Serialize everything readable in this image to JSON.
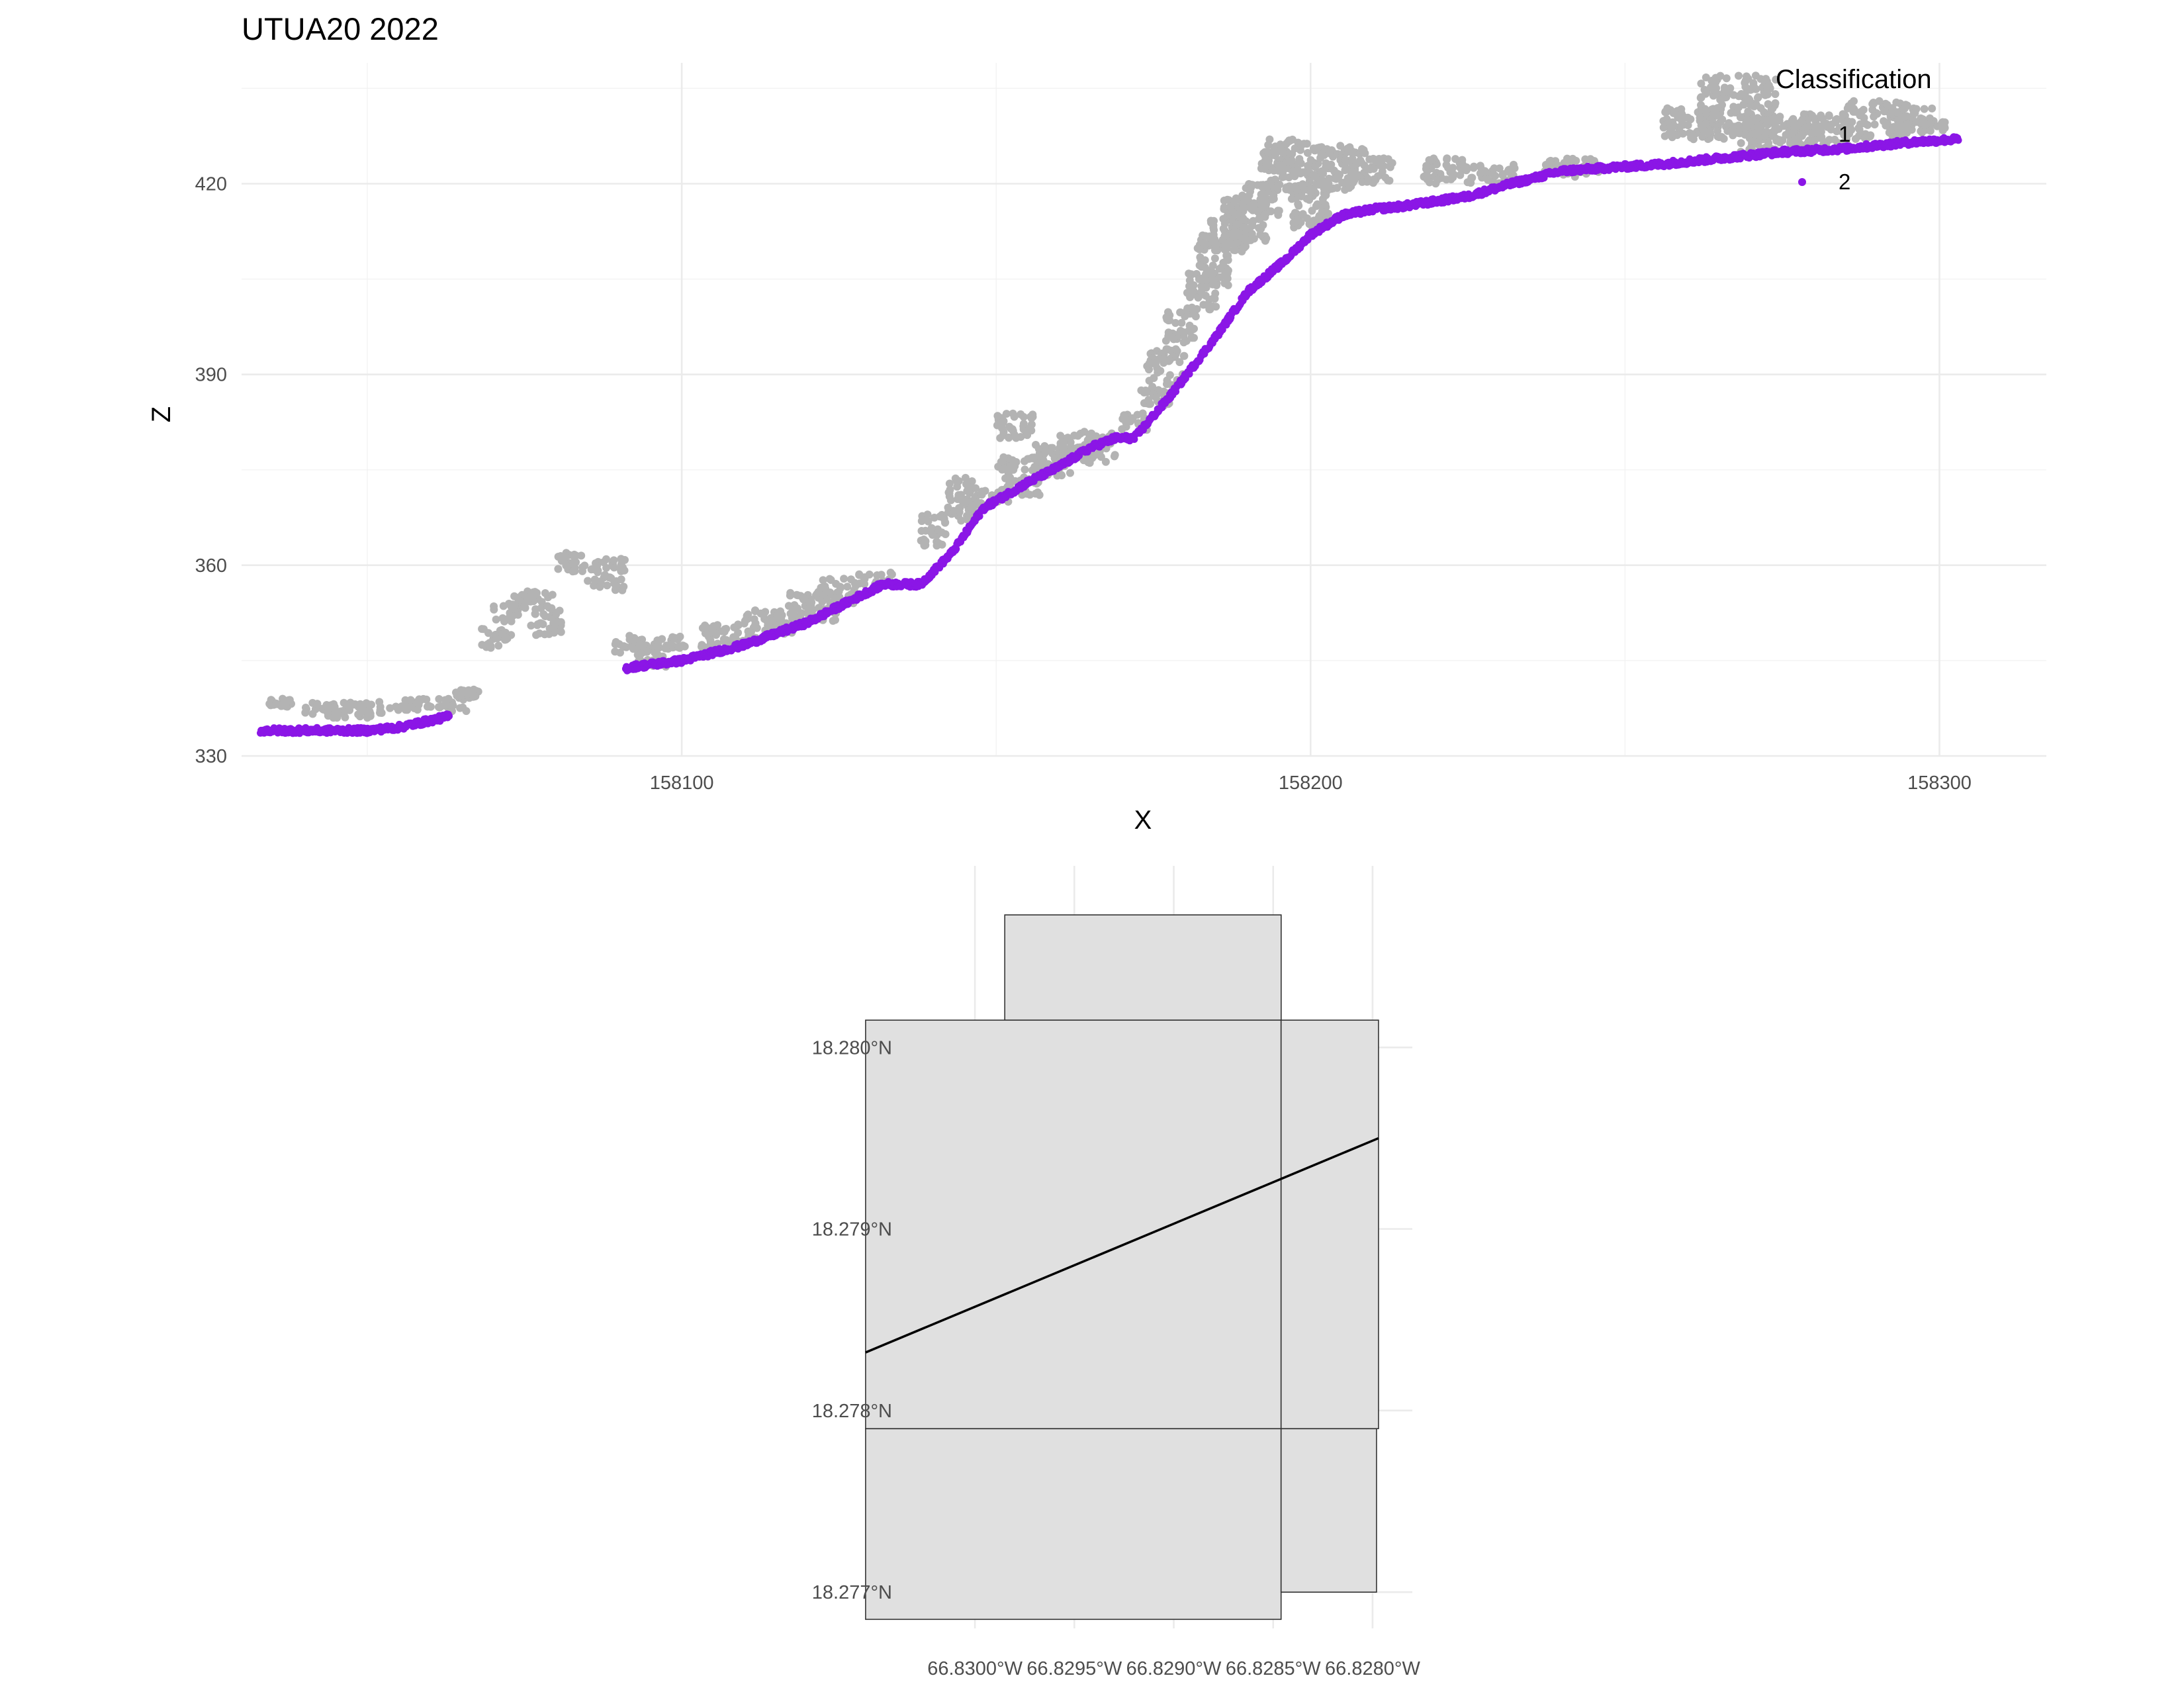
{
  "colors": {
    "class_1": "#b3b3b3",
    "class_2": "#8b16e6",
    "tile_fill": "#e0e0e0",
    "tile_stroke": "#333333",
    "transect": "#000000"
  },
  "chart_data": [
    {
      "type": "scatter",
      "title": "UTUA20 2022",
      "xlabel": "X",
      "ylabel": "Z",
      "xlim": [
        158030,
        158317
      ],
      "ylim": [
        330,
        439
      ],
      "x_ticks": [
        158100,
        158200,
        158300
      ],
      "y_ticks": [
        330,
        360,
        390,
        420
      ],
      "grid": true,
      "legend": {
        "title": "Classification",
        "position": "top-right",
        "entries": [
          "1",
          "2"
        ]
      },
      "series": [
        {
          "name": "1",
          "color": "#b3b3b3",
          "clusters": [
            [
              158034,
              158038,
              337.5,
              339
            ],
            [
              158040,
              158055,
              336,
              338.5
            ],
            [
              158055,
              158066,
              337,
              339
            ],
            [
              158064,
              158068,
              339,
              340.5
            ],
            [
              158068,
              158073,
              347,
              350
            ],
            [
              158070,
              158074,
              351,
              354
            ],
            [
              158073,
              158080,
              353,
              356
            ],
            [
              158076,
              158081,
              349,
              353
            ],
            [
              158080,
              158085,
              359,
              362
            ],
            [
              158085,
              158091,
              356,
              361
            ],
            [
              158089,
              158094,
              346,
              349
            ],
            [
              158093,
              158098,
              344,
              348
            ],
            [
              158096,
              158101,
              347,
              349
            ],
            [
              158103,
              158112,
              347,
              351
            ],
            [
              158110,
              158118,
              349,
              353
            ],
            [
              158117,
              158125,
              351,
              356
            ],
            [
              158122,
              158128,
              354,
              358
            ],
            [
              158128,
              158134,
              357,
              359
            ],
            [
              158138,
              158142,
              363,
              368
            ],
            [
              158142,
              158147,
              367,
              374
            ],
            [
              158146,
              158152,
              369,
              372
            ],
            [
              158150,
              158157,
              371,
              377
            ],
            [
              158150,
              158156,
              380,
              384
            ],
            [
              158156,
              158162,
              374,
              379
            ],
            [
              158160,
              158169,
              376,
              381
            ],
            [
              158170,
              158174,
              381,
              384
            ],
            [
              158173,
              158178,
              385,
              389
            ],
            [
              158174,
              158180,
              389,
              394
            ],
            [
              158177,
              158182,
              395,
              400
            ],
            [
              158180,
              158185,
              400,
              406
            ],
            [
              158182,
              158187,
              404,
              412
            ],
            [
              158184,
              158190,
              409,
              415
            ],
            [
              158186,
              158193,
              411,
              418
            ],
            [
              158189,
              158195,
              415,
              420
            ],
            [
              158192,
              158200,
              419,
              427
            ],
            [
              158197,
              158203,
              413,
              420
            ],
            [
              158200,
              158209,
              419,
              426
            ],
            [
              158206,
              158213,
              420,
              424
            ],
            [
              158218,
              158225,
              420,
              424
            ],
            [
              158225,
              158233,
              420,
              423
            ],
            [
              158237,
              158246,
              421,
              424
            ],
            [
              158256,
              158264,
              427,
              432
            ],
            [
              158262,
              158274,
              427,
              437
            ],
            [
              158268,
              158280,
              425,
              431
            ],
            [
              158276,
              158286,
              426,
              431
            ],
            [
              158285,
              158295,
              427,
              433
            ],
            [
              158292,
              158299,
              428,
              432
            ],
            [
              158297,
              158301,
              428,
              430
            ]
          ]
        },
        {
          "name": "2",
          "color": "#8b16e6",
          "profile": [
            [
              158033,
              334
            ],
            [
              158040,
              334
            ],
            [
              158045,
              334
            ],
            [
              158050,
              334
            ],
            [
              158055,
              334.5
            ],
            [
              158062,
              336
            ],
            [
              158092,
              344
            ],
            [
              158100,
              345
            ],
            [
              158110,
              347.5
            ],
            [
              158120,
              351
            ],
            [
              158128,
              355
            ],
            [
              158132,
              357
            ],
            [
              158138,
              357
            ],
            [
              158143,
              362
            ],
            [
              158148,
              369
            ],
            [
              158155,
              373
            ],
            [
              158160,
              375.5
            ],
            [
              158165,
              378.5
            ],
            [
              158169,
              380
            ],
            [
              158172,
              380
            ],
            [
              158178,
              387
            ],
            [
              158185,
              396
            ],
            [
              158190,
              403
            ],
            [
              158196,
              408
            ],
            [
              158200,
              412
            ],
            [
              158205,
              415
            ],
            [
              158210,
              416
            ],
            [
              158215,
              416.5
            ],
            [
              158225,
              418
            ],
            [
              158232,
              420
            ],
            [
              158240,
              422
            ],
            [
              158247,
              422.5
            ],
            [
              158255,
              423
            ],
            [
              158265,
              424
            ],
            [
              158275,
              425
            ],
            [
              158285,
              425.5
            ],
            [
              158295,
              426.5
            ],
            [
              158303,
              427
            ]
          ],
          "gaps": [
            [
              158063,
              158091
            ]
          ]
        }
      ]
    },
    {
      "type": "map",
      "x_ticks": [
        "66.8300°W",
        "66.8295°W",
        "66.8290°W",
        "66.8285°W",
        "66.8280°W"
      ],
      "x_tick_values": [
        -66.83,
        -66.8295,
        -66.829,
        -66.8285,
        -66.828
      ],
      "y_ticks": [
        "18.277°N",
        "18.278°N",
        "18.279°N",
        "18.280°N"
      ],
      "y_tick_values": [
        18.277,
        18.278,
        18.279,
        18.28
      ],
      "xlim": [
        -66.83027,
        -66.8278
      ],
      "ylim": [
        18.2768,
        18.281
      ],
      "tiles": [
        {
          "lon": [
            -66.82985,
            -66.82846
          ],
          "lat": [
            18.28015,
            18.28073
          ]
        },
        {
          "lon": [
            -66.83055,
            -66.82846
          ],
          "lat": [
            18.2779,
            18.28015
          ]
        },
        {
          "lon": [
            -66.82846,
            -66.82797
          ],
          "lat": [
            18.2779,
            18.28015
          ]
        },
        {
          "lon": [
            -66.83055,
            -66.82846
          ],
          "lat": [
            18.27685,
            18.2779
          ]
        },
        {
          "lon": [
            -66.82846,
            -66.82798
          ],
          "lat": [
            18.277,
            18.2779
          ]
        }
      ],
      "transect": {
        "lon": [
          -66.83055,
          -66.82797
        ],
        "lat": [
          18.27832,
          18.2795
        ]
      }
    }
  ]
}
